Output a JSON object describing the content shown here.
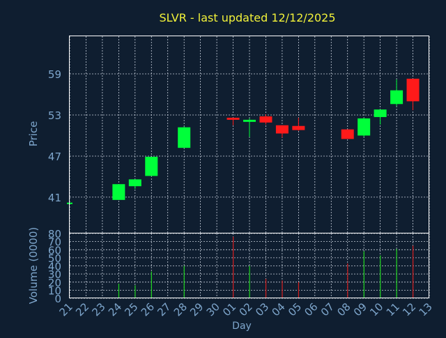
{
  "colors": {
    "background": "#0f1e30",
    "title": "#f2f23a",
    "axis_text": "#7ea6cc",
    "frame": "#ffffff",
    "grid": "#c8d0dc",
    "up": "#00ff3a",
    "down": "#ff1a1a",
    "volume_up": "#1fd41f",
    "volume_down": "#d41f1f"
  },
  "chart_data": {
    "type": "candlestick",
    "title": "SLVR - last updated 12/12/2025",
    "xlabel": "Day",
    "grid": true,
    "categories": [
      "21",
      "22",
      "23",
      "24",
      "25",
      "26",
      "27",
      "28",
      "29",
      "30",
      "01",
      "02",
      "03",
      "04",
      "05",
      "06",
      "07",
      "08",
      "09",
      "10",
      "11",
      "12",
      "13"
    ],
    "price_panel": {
      "ylabel": "Price",
      "ylim": [
        35.7,
        64.5
      ],
      "yticks": [
        41,
        47,
        53,
        59
      ],
      "candles": [
        {
          "x": "21",
          "open": 40.1,
          "high": 40.2,
          "low": 40.1,
          "close": 40.2,
          "dir": "up"
        },
        {
          "x": "24",
          "open": 40.6,
          "high": 42.9,
          "low": 40.6,
          "close": 42.9,
          "dir": "up"
        },
        {
          "x": "25",
          "open": 42.6,
          "high": 43.6,
          "low": 42.2,
          "close": 43.6,
          "dir": "up"
        },
        {
          "x": "26",
          "open": 44.1,
          "high": 46.9,
          "low": 44.1,
          "close": 46.9,
          "dir": "up"
        },
        {
          "x": "28",
          "open": 48.2,
          "high": 51.3,
          "low": 48.2,
          "close": 51.2,
          "dir": "up"
        },
        {
          "x": "01",
          "open": 52.6,
          "high": 52.6,
          "low": 51.5,
          "close": 52.3,
          "dir": "down"
        },
        {
          "x": "02",
          "open": 52.0,
          "high": 52.5,
          "low": 49.8,
          "close": 52.3,
          "dir": "up"
        },
        {
          "x": "03",
          "open": 52.8,
          "high": 53.1,
          "low": 51.6,
          "close": 51.9,
          "dir": "down"
        },
        {
          "x": "04",
          "open": 51.5,
          "high": 51.5,
          "low": 49.7,
          "close": 50.3,
          "dir": "down"
        },
        {
          "x": "05",
          "open": 51.4,
          "high": 52.6,
          "low": 50.7,
          "close": 50.8,
          "dir": "down"
        },
        {
          "x": "08",
          "open": 50.9,
          "high": 50.9,
          "low": 49.5,
          "close": 49.5,
          "dir": "down"
        },
        {
          "x": "09",
          "open": 50.0,
          "high": 52.6,
          "low": 49.8,
          "close": 52.5,
          "dir": "up"
        },
        {
          "x": "10",
          "open": 52.7,
          "high": 53.8,
          "low": 51.6,
          "close": 53.8,
          "dir": "up"
        },
        {
          "x": "11",
          "open": 54.6,
          "high": 58.2,
          "low": 54.3,
          "close": 56.6,
          "dir": "up"
        },
        {
          "x": "12",
          "open": 58.3,
          "high": 58.3,
          "low": 53.7,
          "close": 55.0,
          "dir": "down"
        }
      ]
    },
    "volume_panel": {
      "ylabel": "Volume (0000)",
      "ylim": [
        0,
        80
      ],
      "yticks": [
        0,
        10,
        20,
        30,
        40,
        50,
        60,
        70,
        80
      ],
      "bars": [
        {
          "x": "24",
          "value": 18,
          "dir": "up"
        },
        {
          "x": "25",
          "value": 16,
          "dir": "up"
        },
        {
          "x": "26",
          "value": 33,
          "dir": "up"
        },
        {
          "x": "28",
          "value": 40,
          "dir": "up"
        },
        {
          "x": "01",
          "value": 76,
          "dir": "down"
        },
        {
          "x": "02",
          "value": 40,
          "dir": "up"
        },
        {
          "x": "03",
          "value": 24,
          "dir": "down"
        },
        {
          "x": "04",
          "value": 22,
          "dir": "down"
        },
        {
          "x": "05",
          "value": 20,
          "dir": "down"
        },
        {
          "x": "08",
          "value": 43,
          "dir": "down"
        },
        {
          "x": "09",
          "value": 58,
          "dir": "up"
        },
        {
          "x": "10",
          "value": 53,
          "dir": "up"
        },
        {
          "x": "11",
          "value": 61,
          "dir": "up"
        },
        {
          "x": "12",
          "value": 65,
          "dir": "down"
        }
      ]
    }
  }
}
